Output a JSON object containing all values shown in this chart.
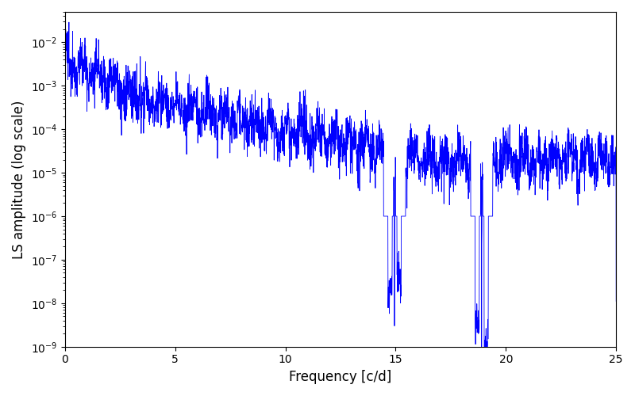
{
  "xlabel": "Frequency [c/d]",
  "ylabel": "LS amplitude (log scale)",
  "line_color": "blue",
  "xlim": [
    0,
    25
  ],
  "ylim": [
    1e-09,
    0.05
  ],
  "freq_max": 25.0,
  "n_points": 3000,
  "seed": 12345,
  "figsize": [
    8.0,
    5.0
  ],
  "dpi": 100
}
